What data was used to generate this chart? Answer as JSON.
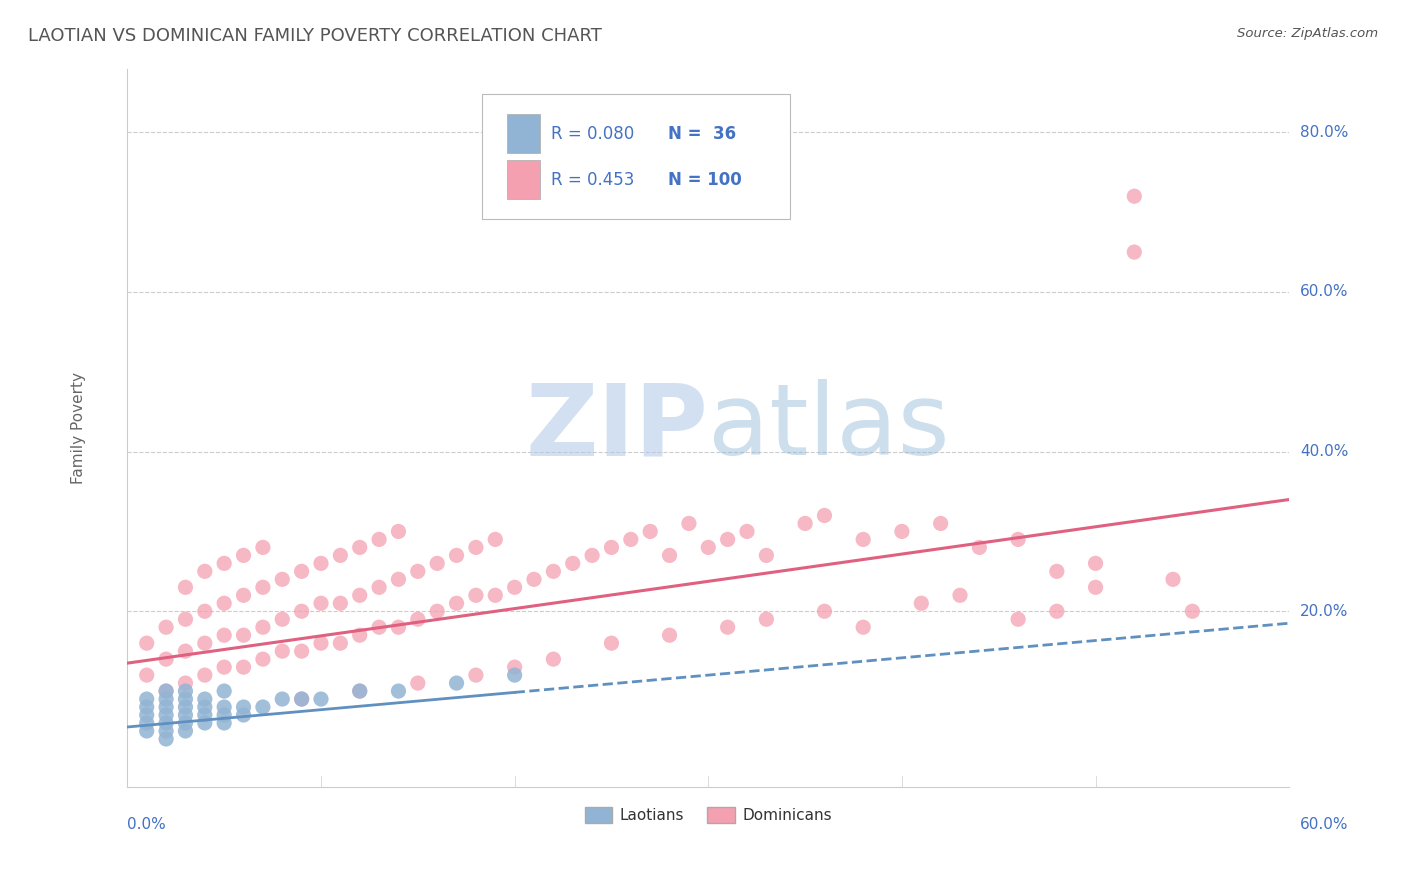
{
  "title": "LAOTIAN VS DOMINICAN FAMILY POVERTY CORRELATION CHART",
  "source_text": "Source: ZipAtlas.com",
  "ylabel": "Family Poverty",
  "ytick_labels": [
    "20.0%",
    "40.0%",
    "60.0%",
    "80.0%"
  ],
  "ytick_values": [
    0.2,
    0.4,
    0.6,
    0.8
  ],
  "xlim": [
    0.0,
    0.6
  ],
  "ylim": [
    -0.02,
    0.88
  ],
  "laotian_color": "#92B4D4",
  "dominican_color": "#F4A0B0",
  "laotian_line_color": "#6090C0",
  "dominican_line_color": "#E06080",
  "background_color": "#ffffff",
  "grid_color": "#cccccc",
  "title_color": "#555555",
  "axis_label_color": "#4472C4",
  "watermark_color": "#C8DCF0",
  "laotian_x": [
    0.01,
    0.01,
    0.01,
    0.01,
    0.01,
    0.02,
    0.02,
    0.02,
    0.02,
    0.02,
    0.02,
    0.02,
    0.03,
    0.03,
    0.03,
    0.03,
    0.03,
    0.03,
    0.04,
    0.04,
    0.04,
    0.04,
    0.05,
    0.05,
    0.05,
    0.05,
    0.06,
    0.06,
    0.07,
    0.08,
    0.09,
    0.1,
    0.12,
    0.14,
    0.17,
    0.2
  ],
  "laotian_y": [
    0.05,
    0.06,
    0.07,
    0.08,
    0.09,
    0.04,
    0.05,
    0.06,
    0.07,
    0.08,
    0.09,
    0.1,
    0.05,
    0.06,
    0.07,
    0.08,
    0.09,
    0.1,
    0.06,
    0.07,
    0.08,
    0.09,
    0.06,
    0.07,
    0.08,
    0.1,
    0.07,
    0.08,
    0.08,
    0.09,
    0.09,
    0.09,
    0.1,
    0.1,
    0.11,
    0.12
  ],
  "dominican_x": [
    0.01,
    0.01,
    0.02,
    0.02,
    0.02,
    0.03,
    0.03,
    0.03,
    0.03,
    0.04,
    0.04,
    0.04,
    0.04,
    0.05,
    0.05,
    0.05,
    0.05,
    0.06,
    0.06,
    0.06,
    0.06,
    0.07,
    0.07,
    0.07,
    0.07,
    0.08,
    0.08,
    0.08,
    0.09,
    0.09,
    0.09,
    0.1,
    0.1,
    0.1,
    0.11,
    0.11,
    0.11,
    0.12,
    0.12,
    0.12,
    0.13,
    0.13,
    0.13,
    0.14,
    0.14,
    0.14,
    0.15,
    0.15,
    0.16,
    0.16,
    0.17,
    0.17,
    0.18,
    0.18,
    0.19,
    0.19,
    0.2,
    0.21,
    0.22,
    0.23,
    0.24,
    0.25,
    0.26,
    0.27,
    0.28,
    0.29,
    0.3,
    0.31,
    0.32,
    0.33,
    0.35,
    0.36,
    0.38,
    0.4,
    0.42,
    0.44,
    0.46,
    0.48,
    0.5,
    0.52,
    0.54,
    0.55,
    0.52,
    0.5,
    0.48,
    0.46,
    0.43,
    0.41,
    0.38,
    0.36,
    0.33,
    0.31,
    0.28,
    0.25,
    0.22,
    0.2,
    0.18,
    0.15,
    0.12,
    0.09
  ],
  "dominican_y": [
    0.12,
    0.16,
    0.1,
    0.14,
    0.18,
    0.11,
    0.15,
    0.19,
    0.23,
    0.12,
    0.16,
    0.2,
    0.25,
    0.13,
    0.17,
    0.21,
    0.26,
    0.13,
    0.17,
    0.22,
    0.27,
    0.14,
    0.18,
    0.23,
    0.28,
    0.15,
    0.19,
    0.24,
    0.15,
    0.2,
    0.25,
    0.16,
    0.21,
    0.26,
    0.16,
    0.21,
    0.27,
    0.17,
    0.22,
    0.28,
    0.18,
    0.23,
    0.29,
    0.18,
    0.24,
    0.3,
    0.19,
    0.25,
    0.2,
    0.26,
    0.21,
    0.27,
    0.22,
    0.28,
    0.22,
    0.29,
    0.23,
    0.24,
    0.25,
    0.26,
    0.27,
    0.28,
    0.29,
    0.3,
    0.27,
    0.31,
    0.28,
    0.29,
    0.3,
    0.27,
    0.31,
    0.32,
    0.29,
    0.3,
    0.31,
    0.28,
    0.29,
    0.25,
    0.26,
    0.65,
    0.24,
    0.2,
    0.72,
    0.23,
    0.2,
    0.19,
    0.22,
    0.21,
    0.18,
    0.2,
    0.19,
    0.18,
    0.17,
    0.16,
    0.14,
    0.13,
    0.12,
    0.11,
    0.1,
    0.09
  ],
  "lao_line_x0": 0.0,
  "lao_line_y0": 0.055,
  "lao_line_x1": 0.6,
  "lao_line_y1": 0.185,
  "dom_line_x0": 0.0,
  "dom_line_y0": 0.135,
  "dom_line_x1": 0.6,
  "dom_line_y1": 0.34
}
